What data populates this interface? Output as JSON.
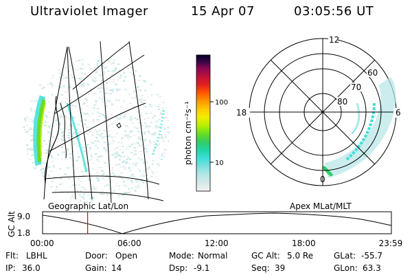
{
  "header": {
    "title": "Ultraviolet Imager",
    "date": "15 Apr 07",
    "time": "03:05:56 UT"
  },
  "colorbar": {
    "label": "photon cm⁻²s⁻¹",
    "ticks": [
      "100",
      "10"
    ],
    "colors": [
      "#f2f2f2",
      "#d6e8e8",
      "#b5e6e6",
      "#7fdfe0",
      "#3ddfd8",
      "#22d6a8",
      "#33cc66",
      "#66dd22",
      "#b6ee00",
      "#eeee00",
      "#ffcc00",
      "#ff9900",
      "#ff5a00",
      "#e62020",
      "#c0103a",
      "#8a0850",
      "#3a0646",
      "#000022"
    ]
  },
  "panels": {
    "left_label": "Geographic Lat/Lon",
    "right_label": "Apex MLat/MLT",
    "polar_labels": {
      "top": "12",
      "left": "18",
      "right": "6",
      "bottom": "0",
      "rings": [
        "60",
        "70",
        "80"
      ]
    }
  },
  "timeline": {
    "ylabel": "GC Alt",
    "yticks": [
      "9.0",
      "1.8"
    ],
    "xticks": [
      "00:00",
      "06:00",
      "12:00",
      "18:00",
      "23:59"
    ],
    "marker_hour": 3.1
  },
  "footer": {
    "row1": [
      {
        "key": "Flt:",
        "val": "LBHL"
      },
      {
        "key": "Door:",
        "val": "Open"
      },
      {
        "key": "Mode:",
        "val": "Normal"
      },
      {
        "key": "GC Alt:",
        "val": "5.0 Re"
      },
      {
        "key": "GLat:",
        "val": "-55.7"
      }
    ],
    "row2": [
      {
        "key": "IP:",
        "val": "36.0"
      },
      {
        "key": "Gain:",
        "val": "14"
      },
      {
        "key": "Dsp:",
        "val": "-9.1"
      },
      {
        "key": "Seq:",
        "val": "39"
      },
      {
        "key": "GLon:",
        "val": "63.3"
      }
    ]
  }
}
